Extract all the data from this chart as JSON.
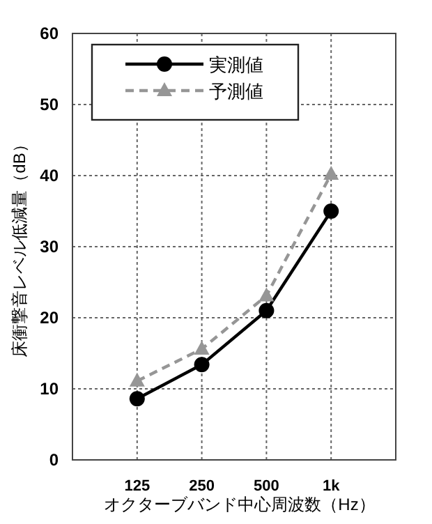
{
  "chart_data": {
    "type": "line",
    "xlabel": "オクターブバンド中心周波数（Hz）",
    "ylabel": "床衝撃音レベル低減量（dB）",
    "categories": [
      "125",
      "250",
      "500",
      "1k"
    ],
    "series": [
      {
        "name": "実測値",
        "color": "#000000",
        "marker": "circle",
        "line_style": "solid",
        "values": [
          8.6,
          13.4,
          21.0,
          35.0
        ]
      },
      {
        "name": "予測値",
        "color": "#969696",
        "marker": "triangle",
        "line_style": "dashed",
        "values": [
          11.1,
          15.6,
          23.1,
          40.2
        ]
      }
    ],
    "ylim": [
      0,
      60
    ],
    "yticks": [
      0,
      10,
      20,
      30,
      40,
      50,
      60
    ],
    "grid": true,
    "legend": "top left"
  }
}
